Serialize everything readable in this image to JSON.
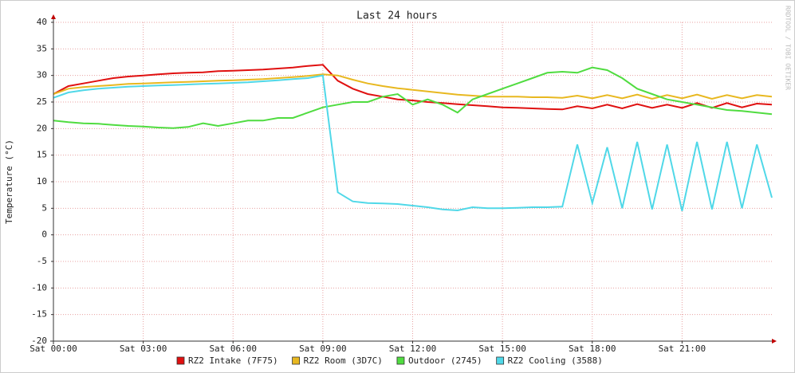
{
  "chart_data": {
    "type": "line",
    "title": "Last 24 hours",
    "y_label": "Temperature (°C)",
    "watermark": "RRDTOOL / TOBI OETIKER",
    "x": [
      0,
      0.5,
      1,
      1.5,
      2,
      2.5,
      3,
      3.5,
      4,
      4.5,
      5,
      5.5,
      6,
      6.5,
      7,
      7.5,
      8,
      8.5,
      9,
      9.5,
      10,
      10.5,
      11,
      11.5,
      12,
      12.5,
      13,
      13.5,
      14,
      14.5,
      15,
      15.5,
      16,
      16.5,
      17,
      17.5,
      18,
      18.5,
      19,
      19.5,
      20,
      20.5,
      21,
      21.5,
      22,
      22.5,
      23,
      23.5,
      24
    ],
    "xlim": [
      0,
      24
    ],
    "xticks": [
      {
        "value": 0,
        "label": "Sat 00:00"
      },
      {
        "value": 3,
        "label": "Sat 03:00"
      },
      {
        "value": 6,
        "label": "Sat 06:00"
      },
      {
        "value": 9,
        "label": "Sat 09:00"
      },
      {
        "value": 12,
        "label": "Sat 12:00"
      },
      {
        "value": 15,
        "label": "Sat 15:00"
      },
      {
        "value": 18,
        "label": "Sat 18:00"
      },
      {
        "value": 21,
        "label": "Sat 21:00"
      }
    ],
    "ylim": [
      -20,
      40
    ],
    "yticks": [
      -20,
      -15,
      -10,
      -5,
      0,
      5,
      10,
      15,
      20,
      25,
      30,
      35,
      40
    ],
    "grid": true,
    "series": [
      {
        "name": "RZ2 Intake (7F75)",
        "color": "#e01010",
        "values": [
          26.5,
          28,
          28.5,
          29,
          29.5,
          29.8,
          30,
          30.2,
          30.4,
          30.5,
          30.6,
          30.8,
          30.9,
          31,
          31.1,
          31.3,
          31.5,
          31.8,
          32,
          29,
          27.5,
          26.5,
          26,
          25.5,
          25.3,
          25,
          24.8,
          24.6,
          24.4,
          24.2,
          24,
          23.9,
          23.8,
          23.7,
          23.6,
          24.2,
          23.8,
          24.5,
          23.8,
          24.6,
          23.9,
          24.5,
          23.9,
          24.8,
          23.9,
          24.8,
          24,
          24.7,
          24.5
        ]
      },
      {
        "name": "RZ2 Room (3D7C)",
        "color": "#e8b820",
        "values": [
          26.5,
          27.5,
          27.8,
          28,
          28.2,
          28.4,
          28.5,
          28.6,
          28.7,
          28.8,
          28.9,
          29,
          29.1,
          29.2,
          29.3,
          29.5,
          29.7,
          29.9,
          30.2,
          30,
          29.2,
          28.5,
          28,
          27.6,
          27.3,
          27,
          26.7,
          26.4,
          26.2,
          26,
          26,
          26,
          25.9,
          25.9,
          25.8,
          26.2,
          25.7,
          26.3,
          25.7,
          26.4,
          25.6,
          26.3,
          25.7,
          26.4,
          25.6,
          26.3,
          25.7,
          26.3,
          26
        ]
      },
      {
        "name": "Outdoor (2745)",
        "color": "#50dc40",
        "values": [
          21.5,
          21.2,
          21,
          20.9,
          20.7,
          20.5,
          20.4,
          20.2,
          20.1,
          20.3,
          21,
          20.5,
          21,
          21.5,
          21.5,
          22,
          22,
          23,
          24,
          24.5,
          25,
          25,
          26,
          26.5,
          24.5,
          25.5,
          24.5,
          23,
          25.5,
          26.5,
          27.5,
          28.5,
          29.5,
          30.5,
          30.7,
          30.5,
          31.5,
          31,
          29.5,
          27.5,
          26.5,
          25.5,
          25,
          24.5,
          24,
          23.5,
          23.3,
          23,
          22.7
        ]
      },
      {
        "name": "RZ2 Cooling (3588)",
        "color": "#50d8e8",
        "values": [
          25.8,
          26.8,
          27.2,
          27.5,
          27.7,
          27.9,
          28,
          28.1,
          28.2,
          28.3,
          28.4,
          28.5,
          28.6,
          28.7,
          28.9,
          29.1,
          29.3,
          29.5,
          30,
          8,
          6.3,
          6,
          5.9,
          5.8,
          5.5,
          5.2,
          4.8,
          4.6,
          5.2,
          5,
          5,
          5.1,
          5.2,
          5.2,
          5.3,
          17,
          6,
          16.5,
          5,
          17.5,
          4.8,
          17,
          4.5,
          17.5,
          4.8,
          17.5,
          5,
          17,
          7
        ]
      }
    ]
  }
}
